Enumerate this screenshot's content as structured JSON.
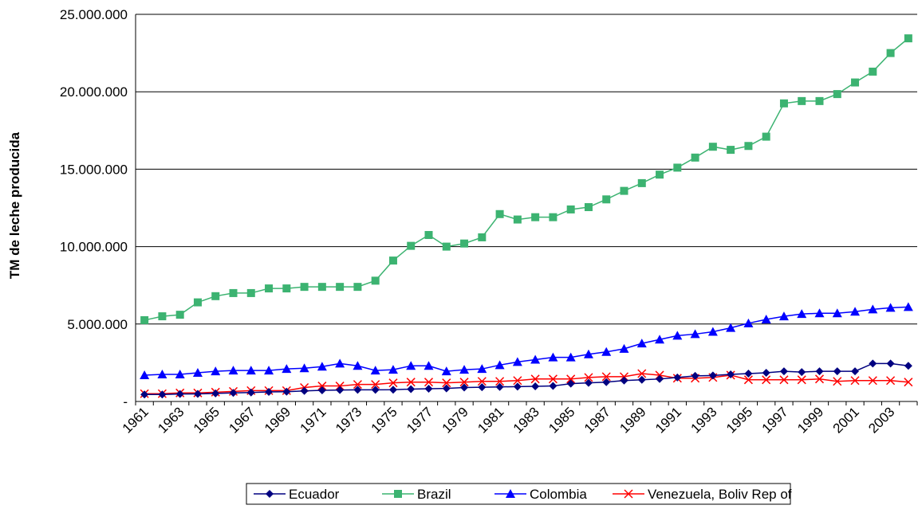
{
  "chart_data": {
    "type": "line",
    "title": "",
    "xlabel": "",
    "ylabel": "TM de leche producida",
    "ylim": [
      0,
      25000000
    ],
    "yticks": [
      "-",
      "5.000.000",
      "10.000.000",
      "15.000.000",
      "20.000.000",
      "25.000.000"
    ],
    "x": [
      1961,
      1962,
      1963,
      1964,
      1965,
      1966,
      1967,
      1968,
      1969,
      1970,
      1971,
      1972,
      1973,
      1974,
      1975,
      1976,
      1977,
      1978,
      1979,
      1980,
      1981,
      1982,
      1983,
      1984,
      1985,
      1986,
      1987,
      1988,
      1989,
      1990,
      1991,
      1992,
      1993,
      1994,
      1995,
      1996,
      1997,
      1998,
      1999,
      2000,
      2001,
      2002,
      2003,
      2004
    ],
    "xtick_labels": [
      "1961",
      "1963",
      "1965",
      "1967",
      "1969",
      "1971",
      "1973",
      "1975",
      "1977",
      "1979",
      "1981",
      "1983",
      "1985",
      "1987",
      "1989",
      "1991",
      "1993",
      "1995",
      "1997",
      "1999",
      "2001",
      "2003"
    ],
    "grid": "horizontal",
    "legend_position": "bottom",
    "series": [
      {
        "name": "Ecuador",
        "color": "#000080",
        "marker": "diamond",
        "values": [
          450000,
          450000,
          480000,
          490000,
          520000,
          550000,
          580000,
          620000,
          630000,
          680000,
          720000,
          740000,
          750000,
          750000,
          760000,
          800000,
          820000,
          840000,
          900000,
          920000,
          940000,
          960000,
          980000,
          1000000,
          1150000,
          1200000,
          1250000,
          1350000,
          1400000,
          1450000,
          1550000,
          1650000,
          1680000,
          1750000,
          1800000,
          1850000,
          1950000,
          1900000,
          1950000,
          1950000,
          1950000,
          2450000,
          2450000,
          2300000
        ]
      },
      {
        "name": "Brazil",
        "color": "#3cb371",
        "marker": "square",
        "values": [
          5250000,
          5500000,
          5600000,
          6400000,
          6800000,
          7000000,
          7000000,
          7300000,
          7300000,
          7400000,
          7400000,
          7400000,
          7400000,
          7800000,
          9100000,
          10050000,
          10750000,
          10000000,
          10200000,
          10600000,
          12100000,
          11750000,
          11900000,
          11900000,
          12400000,
          12550000,
          13050000,
          13600000,
          14100000,
          14650000,
          15100000,
          15750000,
          16450000,
          16250000,
          16500000,
          17100000,
          19250000,
          19400000,
          19400000,
          19850000,
          20600000,
          21300000,
          22500000,
          23450000
        ]
      },
      {
        "name": "Colombia",
        "color": "#0000ff",
        "marker": "triangle",
        "values": [
          1700000,
          1750000,
          1750000,
          1850000,
          1950000,
          2000000,
          2000000,
          2000000,
          2100000,
          2150000,
          2250000,
          2450000,
          2300000,
          2000000,
          2050000,
          2300000,
          2300000,
          1950000,
          2050000,
          2100000,
          2350000,
          2550000,
          2700000,
          2850000,
          2850000,
          3050000,
          3200000,
          3400000,
          3750000,
          4000000,
          4250000,
          4350000,
          4500000,
          4750000,
          5050000,
          5300000,
          5500000,
          5650000,
          5700000,
          5700000,
          5800000,
          5950000,
          6050000,
          6100000
        ]
      },
      {
        "name": "Venezuela, Boliv Rep of",
        "color": "#ff0000",
        "marker": "x",
        "values": [
          500000,
          500000,
          550000,
          550000,
          600000,
          650000,
          700000,
          700000,
          700000,
          900000,
          1000000,
          1000000,
          1100000,
          1100000,
          1200000,
          1250000,
          1250000,
          1200000,
          1250000,
          1300000,
          1300000,
          1350000,
          1450000,
          1450000,
          1450000,
          1550000,
          1600000,
          1600000,
          1800000,
          1700000,
          1500000,
          1500000,
          1550000,
          1700000,
          1400000,
          1400000,
          1400000,
          1400000,
          1450000,
          1300000,
          1350000,
          1350000,
          1350000,
          1250000
        ]
      }
    ]
  }
}
